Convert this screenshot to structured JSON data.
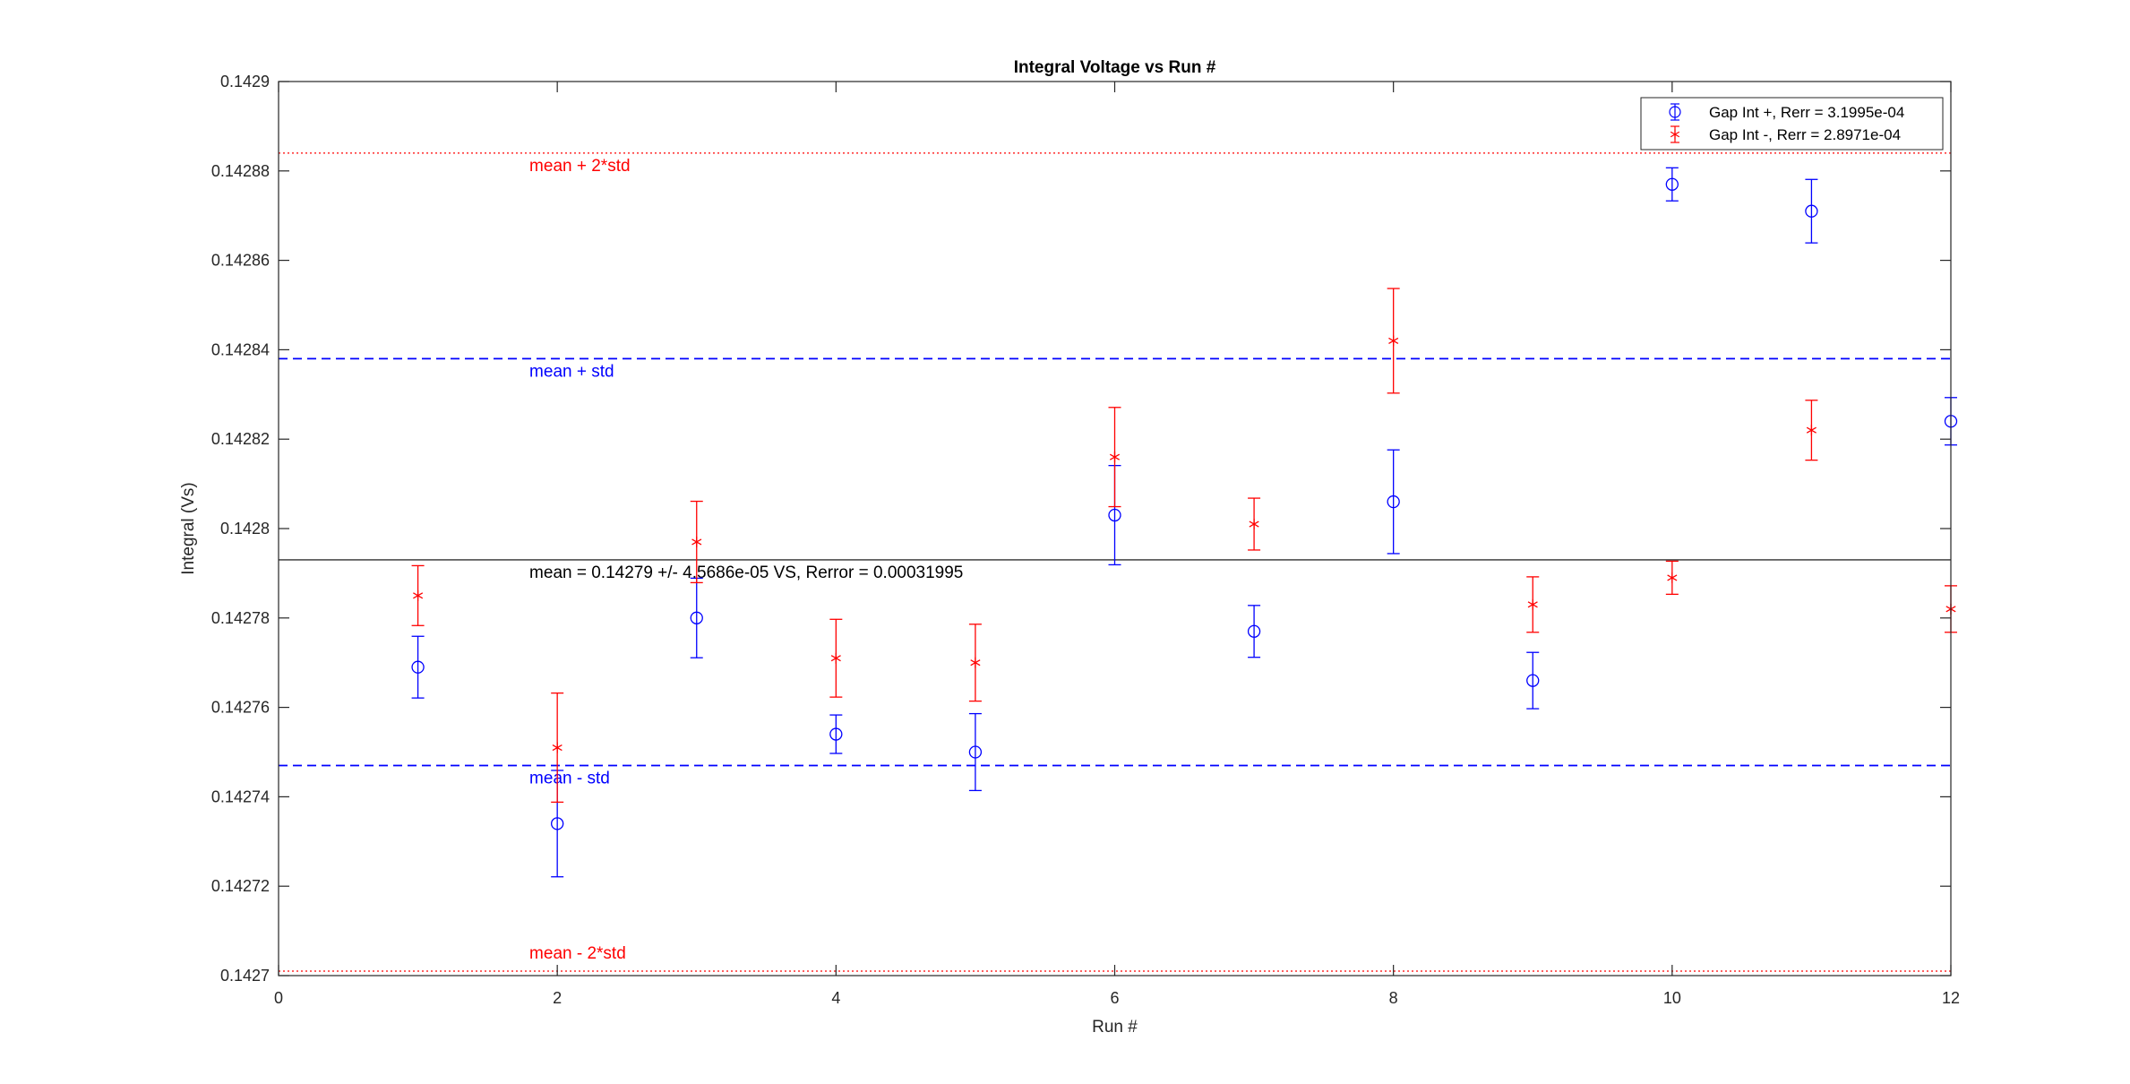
{
  "chart_data": {
    "type": "scatter",
    "title": "Integral Voltage vs Run #",
    "xlabel": "Run #",
    "ylabel": "Integral (Vs)",
    "xlim": [
      0,
      12
    ],
    "ylim": [
      0.1427,
      0.1429
    ],
    "x_ticks": [
      0,
      2,
      4,
      6,
      8,
      10,
      12
    ],
    "x_tick_labels": [
      "0",
      "2",
      "4",
      "6",
      "8",
      "10",
      "12"
    ],
    "y_ticks": [
      0.1427,
      0.14272,
      0.14274,
      0.14276,
      0.14278,
      0.1428,
      0.14282,
      0.14284,
      0.14286,
      0.14288,
      0.1429
    ],
    "y_tick_labels": [
      "0.1427",
      "0.14272",
      "0.14274",
      "0.14276",
      "0.14278",
      "0.1428",
      "0.14282",
      "0.14284",
      "0.14286",
      "0.14288",
      "0.1429"
    ],
    "grid": false,
    "legend_position": "top-right",
    "series": [
      {
        "name": "Gap Int +, Rerr = 3.1995e-04",
        "marker": "circle",
        "color": "#0000ff",
        "x": [
          1,
          2,
          3,
          4,
          5,
          6,
          7,
          8,
          9,
          10,
          11,
          12
        ],
        "y": [
          0.142769,
          0.142734,
          0.14278,
          0.142754,
          0.14275,
          0.142803,
          0.142777,
          0.142806,
          0.142766,
          0.142877,
          0.142871,
          0.142824
        ],
        "err": [
          6.9e-06,
          1.19e-05,
          8.9e-06,
          4.3e-06,
          8.6e-06,
          1.11e-05,
          5.8e-06,
          1.16e-05,
          6.3e-06,
          3.7e-06,
          7.1e-06,
          5.3e-06
        ]
      },
      {
        "name": "Gap Int -, Rerr = 2.8971e-04",
        "marker": "asterisk",
        "color": "#ff0000",
        "x": [
          1,
          2,
          3,
          4,
          5,
          6,
          7,
          8,
          9,
          10,
          11,
          12
        ],
        "y": [
          0.142785,
          0.142751,
          0.142797,
          0.142771,
          0.14277,
          0.142816,
          0.142801,
          0.142842,
          0.142783,
          0.142789,
          0.142822,
          0.142782
        ],
        "err": [
          6.7e-06,
          1.22e-05,
          9.1e-06,
          8.7e-06,
          8.6e-06,
          1.11e-05,
          5.8e-06,
          1.17e-05,
          6.2e-06,
          3.7e-06,
          6.7e-06,
          5.2e-06
        ]
      }
    ],
    "reference_lines": [
      {
        "y": 0.142884,
        "color": "#ff0000",
        "style": "dotted",
        "label": "mean + 2*std"
      },
      {
        "y": 0.142838,
        "color": "#0000ff",
        "style": "dashed",
        "label": "mean + std"
      },
      {
        "y": 0.142793,
        "color": "#000000",
        "style": "solid",
        "label": "mean = 0.14279 +/- 4.5686e-05 VS, Rerror = 0.00031995"
      },
      {
        "y": 0.142747,
        "color": "#0000ff",
        "style": "dashed",
        "label": "mean - std"
      },
      {
        "y": 0.142701,
        "color": "#ff0000",
        "style": "dotted",
        "label": "mean - 2*std"
      }
    ]
  }
}
